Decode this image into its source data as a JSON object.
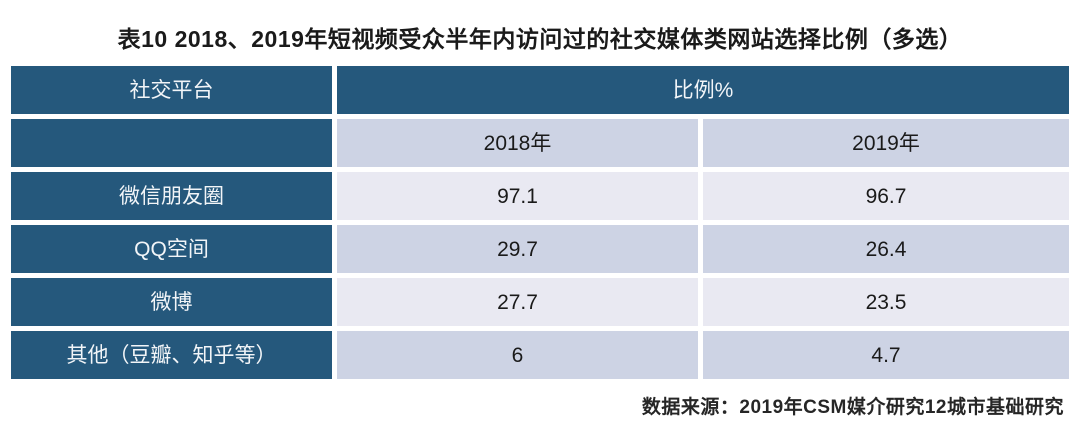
{
  "title": "表10 2018、2019年短视频受众半年内访问过的社交媒体类网站选择比例（多选）",
  "table": {
    "header": {
      "platform_col": "社交平台",
      "ratio_col": "比例%",
      "year_2018": "2018年",
      "year_2019": "2019年"
    },
    "rows": [
      {
        "platform": "微信朋友圈",
        "y2018": "97.1",
        "y2019": "96.7"
      },
      {
        "platform": "QQ空间",
        "y2018": "29.7",
        "y2019": "26.4"
      },
      {
        "platform": "微博",
        "y2018": "27.7",
        "y2019": "23.5"
      },
      {
        "platform": "其他（豆瓣、知乎等）",
        "y2018": "6",
        "y2019": "4.7"
      }
    ]
  },
  "footer": {
    "source": "数据来源：2019年CSM媒介研究12城市基础研究"
  },
  "colors": {
    "header_bg": "#25587C",
    "row_light_bg": "#E9E9F2",
    "row_mid_bg": "#CDD3E4",
    "header_text": "#F2F5F8",
    "body_text": "#1A1A1A"
  },
  "chart_data": {
    "type": "table",
    "title": "表10 2018、2019年短视频受众半年内访问过的社交媒体类网站选择比例（多选）",
    "row_header_label": "社交平台",
    "value_group_label": "比例%",
    "categories": [
      "微信朋友圈",
      "QQ空间",
      "微博",
      "其他（豆瓣、知乎等）"
    ],
    "series": [
      {
        "name": "2018年",
        "values": [
          97.1,
          29.7,
          27.7,
          6
        ]
      },
      {
        "name": "2019年",
        "values": [
          96.7,
          26.4,
          23.5,
          4.7
        ]
      }
    ],
    "source": "数据来源：2019年CSM媒介研究12城市基础研究"
  }
}
